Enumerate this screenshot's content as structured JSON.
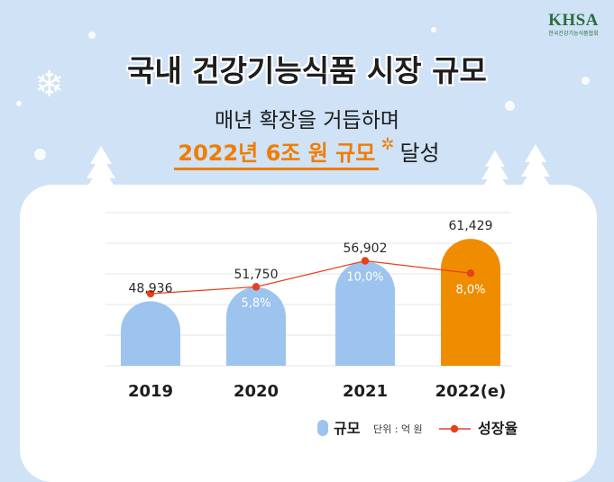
{
  "header": {
    "title": "국내 건강기능식품 시장 규모",
    "subtitle": "매년 확장을 거듭하며",
    "highlight": "2022년 6조 원 규모",
    "highlight_suffix": "달성"
  },
  "logo": {
    "mark": "KHSA",
    "org": "한국건강기능식품협회"
  },
  "colors": {
    "background": "#cfe2f6",
    "bar": "#9dc3ef",
    "bar_highlight": "#f08c00",
    "line": "#e8401c",
    "accent": "#ef7d00"
  },
  "chart_data": {
    "type": "bar",
    "categories": [
      "2019",
      "2020",
      "2021",
      "2022(e)"
    ],
    "series": [
      {
        "name": "규모",
        "values": [
          48936,
          51750,
          56902,
          61429
        ]
      },
      {
        "name": "성장율",
        "values": [
          null,
          5.8,
          10.0,
          8.0
        ]
      }
    ],
    "value_labels": [
      "48,936",
      "51,750",
      "56,902",
      "61,429"
    ],
    "rate_labels": [
      "",
      "5,8%",
      "10,0%",
      "8,0%"
    ],
    "ylim": [
      36000,
      62000
    ],
    "legend": {
      "bar_label": "규모",
      "unit": "단위 : 억 원",
      "line_label": "성장율",
      "position": "bottom-right"
    },
    "title": "국내 건강기능식품 시장 규모"
  }
}
